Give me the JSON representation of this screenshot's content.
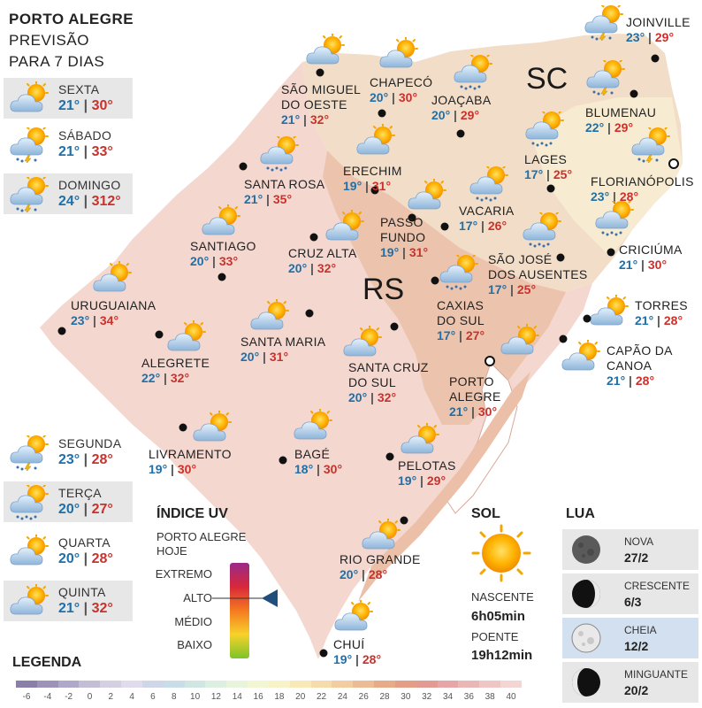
{
  "title": {
    "line1": "PORTO ALEGRE",
    "line2": "PREVISÃO",
    "line3": "PARA 7 DIAS"
  },
  "days": [
    {
      "name": "SEXTA",
      "min": "21°",
      "max": "30°",
      "icon": "partly-cloudy-icon"
    },
    {
      "name": "SÁBADO",
      "min": "21°",
      "max": "33°",
      "icon": "storm-sun-icon"
    },
    {
      "name": "DOMINGO",
      "min": "24°",
      "max": "312°",
      "icon": "storm-sun-icon"
    },
    {
      "name": "SEGUNDA",
      "min": "23°",
      "max": "28°",
      "icon": "storm-sun-icon"
    },
    {
      "name": "TERÇA",
      "min": "20°",
      "max": "27°",
      "icon": "rain-sun-icon"
    },
    {
      "name": "QUARTA",
      "min": "20°",
      "max": "28°",
      "icon": "partly-cloudy-icon"
    },
    {
      "name": "QUINTA",
      "min": "21°",
      "max": "32°",
      "icon": "partly-cloudy-icon"
    }
  ],
  "states": {
    "rs": "RS",
    "sc": "SC"
  },
  "cities": [
    {
      "name": [
        "JOINVILLE"
      ],
      "min": "23°",
      "max": "29°",
      "icon": "storm-sun-icon"
    },
    {
      "name": [
        "CHAPECÓ"
      ],
      "min": "20°",
      "max": "30°",
      "icon": "partly-cloudy-icon"
    },
    {
      "name": [
        "SÃO MIGUEL",
        "DO OESTE"
      ],
      "min": "21°",
      "max": "32°",
      "icon": "partly-cloudy-icon"
    },
    {
      "name": [
        "JOAÇABA"
      ],
      "min": "20°",
      "max": "29°",
      "icon": "rain-sun-icon"
    },
    {
      "name": [
        "BLUMENAU"
      ],
      "min": "22°",
      "max": "29°",
      "icon": "storm-sun-icon"
    },
    {
      "name": [
        "LAGES"
      ],
      "min": "17°",
      "max": "25°",
      "icon": "rain-sun-icon"
    },
    {
      "name": [
        "FLORIANÓPOLIS"
      ],
      "min": "23°",
      "max": "28°",
      "icon": "storm-sun-icon"
    },
    {
      "name": [
        "ERECHIM"
      ],
      "min": "19°",
      "max": "31°",
      "icon": "partly-cloudy-icon"
    },
    {
      "name": [
        "SANTA ROSA"
      ],
      "min": "21°",
      "max": "35°",
      "icon": "rain-sun-icon"
    },
    {
      "name": [
        "VACARIA"
      ],
      "min": "17°",
      "max": "26°",
      "icon": "rain-sun-icon"
    },
    {
      "name": [
        "PASSO",
        "FUNDO"
      ],
      "min": "19°",
      "max": "31°",
      "icon": "partly-cloudy-icon"
    },
    {
      "name": [
        "CRICIÚMA"
      ],
      "min": "21°",
      "max": "30°",
      "icon": "rain-sun-icon"
    },
    {
      "name": [
        "SANTIAGO"
      ],
      "min": "20°",
      "max": "33°",
      "icon": "partly-cloudy-icon"
    },
    {
      "name": [
        "CRUZ ALTA"
      ],
      "min": "20°",
      "max": "32°",
      "icon": "partly-cloudy-icon"
    },
    {
      "name": [
        "SÃO JOSÉ",
        "DOS AUSENTES"
      ],
      "min": "17°",
      "max": "25°",
      "icon": "rain-sun-icon"
    },
    {
      "name": [
        "URUGUAIANA"
      ],
      "min": "23°",
      "max": "34°",
      "icon": "partly-cloudy-icon"
    },
    {
      "name": [
        "CAXIAS",
        "DO SUL"
      ],
      "min": "17°",
      "max": "27°",
      "icon": "rain-sun-icon"
    },
    {
      "name": [
        "TORRES"
      ],
      "min": "21°",
      "max": "28°",
      "icon": "partly-cloudy-icon"
    },
    {
      "name": [
        "SANTA MARIA"
      ],
      "min": "20°",
      "max": "31°",
      "icon": "partly-cloudy-icon"
    },
    {
      "name": [
        "ALEGRETE"
      ],
      "min": "22°",
      "max": "32°",
      "icon": "partly-cloudy-icon"
    },
    {
      "name": [
        "CAPÃO DA",
        "CANOA"
      ],
      "min": "21°",
      "max": "28°",
      "icon": "partly-cloudy-icon"
    },
    {
      "name": [
        "SANTA CRUZ",
        "DO SUL"
      ],
      "min": "20°",
      "max": "32°",
      "icon": "partly-cloudy-icon"
    },
    {
      "name": [
        "PORTO",
        "ALEGRE"
      ],
      "min": "21°",
      "max": "30°",
      "icon": "partly-cloudy-icon"
    },
    {
      "name": [
        "LIVRAMENTO"
      ],
      "min": "19°",
      "max": "30°",
      "icon": "partly-cloudy-icon"
    },
    {
      "name": [
        "BAGÉ"
      ],
      "min": "18°",
      "max": "30°",
      "icon": "partly-cloudy-icon"
    },
    {
      "name": [
        "PELOTAS"
      ],
      "min": "19°",
      "max": "29°",
      "icon": "partly-cloudy-icon"
    },
    {
      "name": [
        "RIO GRANDE"
      ],
      "min": "20°",
      "max": "28°",
      "icon": "partly-cloudy-icon"
    },
    {
      "name": [
        "CHUÍ"
      ],
      "min": "19°",
      "max": "28°",
      "icon": "partly-cloudy-icon"
    }
  ],
  "uv": {
    "title": "ÍNDICE UV",
    "subtitle1": "PORTO ALEGRE",
    "subtitle2": "HOJE",
    "levels": [
      "EXTREMO",
      "ALTO",
      "MÉDIO",
      "BAIXO"
    ],
    "current_level": "ALTO",
    "pointer_color": "#1f4f7a"
  },
  "sun": {
    "title": "SOL",
    "sunrise_label": "NASCENTE",
    "sunrise": "6h05min",
    "sunset_label": "POENTE",
    "sunset": "19h12min"
  },
  "moon": {
    "title": "LUA",
    "phases": [
      {
        "name": "NOVA",
        "date": "27/2",
        "icon": "new-moon-icon"
      },
      {
        "name": "CRESCENTE",
        "date": "6/3",
        "icon": "crescent-moon-icon"
      },
      {
        "name": "CHEIA",
        "date": "12/2",
        "icon": "full-moon-icon"
      },
      {
        "name": "MINGUANTE",
        "date": "20/2",
        "icon": "waning-moon-icon"
      }
    ]
  },
  "legend": {
    "title": "LEGENDA",
    "ticks": [
      "-6",
      "-4",
      "-2",
      "0",
      "2",
      "4",
      "6",
      "8",
      "10",
      "12",
      "14",
      "16",
      "18",
      "20",
      "22",
      "24",
      "26",
      "28",
      "30",
      "32",
      "34",
      "36",
      "38",
      "40"
    ],
    "colors": [
      "#8a7fa8",
      "#9d92b8",
      "#b0a8c8",
      "#c3bdd6",
      "#d4d0e2",
      "#e0dcec",
      "#cfd6ea",
      "#c8dde8",
      "#cfe6e2",
      "#dcefe0",
      "#e9f4dc",
      "#f3f6d2",
      "#f8f2c8",
      "#f9e8b8",
      "#f6dcaa",
      "#f1cda0",
      "#ecbc94",
      "#e6ab88",
      "#e49e86",
      "#e39a94",
      "#e6a5a6",
      "#eab6b6",
      "#efc6c4",
      "#f3d6d3"
    ]
  }
}
